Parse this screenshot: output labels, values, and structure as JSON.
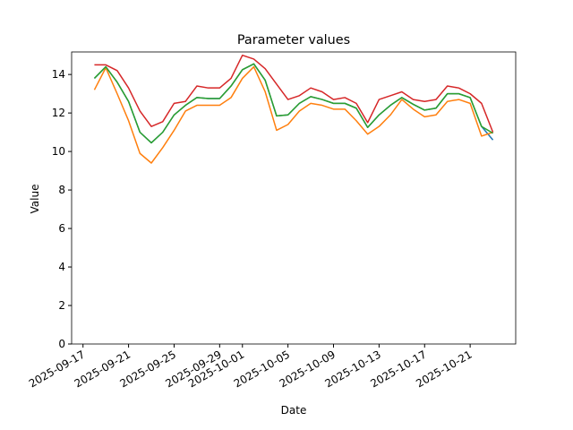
{
  "chart_data": {
    "type": "line",
    "title": "Parameter values",
    "x_label": "Date",
    "y_label": "Value",
    "x": [
      "2025-09-18",
      "2025-09-19",
      "2025-09-20",
      "2025-09-21",
      "2025-09-22",
      "2025-09-23",
      "2025-09-24",
      "2025-09-25",
      "2025-09-26",
      "2025-09-27",
      "2025-09-28",
      "2025-09-29",
      "2025-09-30",
      "2025-10-01",
      "2025-10-02",
      "2025-10-03",
      "2025-10-04",
      "2025-10-05",
      "2025-10-06",
      "2025-10-07",
      "2025-10-08",
      "2025-10-09",
      "2025-10-10",
      "2025-10-11",
      "2025-10-12",
      "2025-10-13",
      "2025-10-14",
      "2025-10-15",
      "2025-10-16",
      "2025-10-17",
      "2025-10-18",
      "2025-10-19",
      "2025-10-20",
      "2025-10-21",
      "2025-10-22",
      "2025-10-23"
    ],
    "series": [
      {
        "color": "#1f77b4",
        "values": [
          13.8,
          14.4,
          13.6,
          12.6,
          11.0,
          10.45,
          11.0,
          11.9,
          12.4,
          12.8,
          12.75,
          12.75,
          13.4,
          14.25,
          14.55,
          13.7,
          11.85,
          11.9,
          12.5,
          12.85,
          12.7,
          12.5,
          12.5,
          12.25,
          11.25,
          11.9,
          12.4,
          12.8,
          12.45,
          12.15,
          12.25,
          13.0,
          13.0,
          12.8,
          11.3,
          10.6
        ]
      },
      {
        "color": "#ff7f0e",
        "values": [
          13.2,
          14.35,
          13.0,
          11.6,
          9.9,
          9.4,
          10.2,
          11.1,
          12.1,
          12.4,
          12.4,
          12.4,
          12.8,
          13.8,
          14.4,
          13.1,
          11.1,
          11.4,
          12.1,
          12.5,
          12.4,
          12.2,
          12.2,
          11.6,
          10.9,
          11.3,
          11.9,
          12.7,
          12.2,
          11.8,
          11.9,
          12.6,
          12.7,
          12.5,
          10.8,
          11.0
        ]
      },
      {
        "color": "#2ca02c",
        "values": [
          13.8,
          14.4,
          13.6,
          12.6,
          11.0,
          10.45,
          11.0,
          11.9,
          12.4,
          12.8,
          12.75,
          12.75,
          13.4,
          14.25,
          14.55,
          13.7,
          11.85,
          11.9,
          12.5,
          12.85,
          12.7,
          12.5,
          12.5,
          12.25,
          11.25,
          11.9,
          12.4,
          12.8,
          12.45,
          12.15,
          12.25,
          13.0,
          13.0,
          12.8,
          11.3,
          10.95
        ]
      },
      {
        "color": "#d62728",
        "values": [
          14.5,
          14.5,
          14.2,
          13.3,
          12.1,
          11.3,
          11.55,
          12.5,
          12.6,
          13.4,
          13.3,
          13.3,
          13.8,
          15.0,
          14.8,
          14.3,
          13.5,
          12.7,
          12.9,
          13.3,
          13.1,
          12.7,
          12.8,
          12.5,
          11.5,
          12.7,
          12.9,
          13.1,
          12.7,
          12.6,
          12.7,
          13.4,
          13.3,
          13.0,
          12.5,
          11.0
        ]
      }
    ],
    "xlim": [
      "2025-09-16",
      "2025-10-25"
    ],
    "xticks": [
      "2025-09-17",
      "2025-09-21",
      "2025-09-25",
      "2025-09-29",
      "2025-10-01",
      "2025-10-05",
      "2025-10-09",
      "2025-10-13",
      "2025-10-17",
      "2025-10-21"
    ],
    "ylim": [
      0,
      15.17
    ],
    "yticks": [
      0,
      2,
      4,
      6,
      8,
      10,
      12,
      14
    ]
  }
}
